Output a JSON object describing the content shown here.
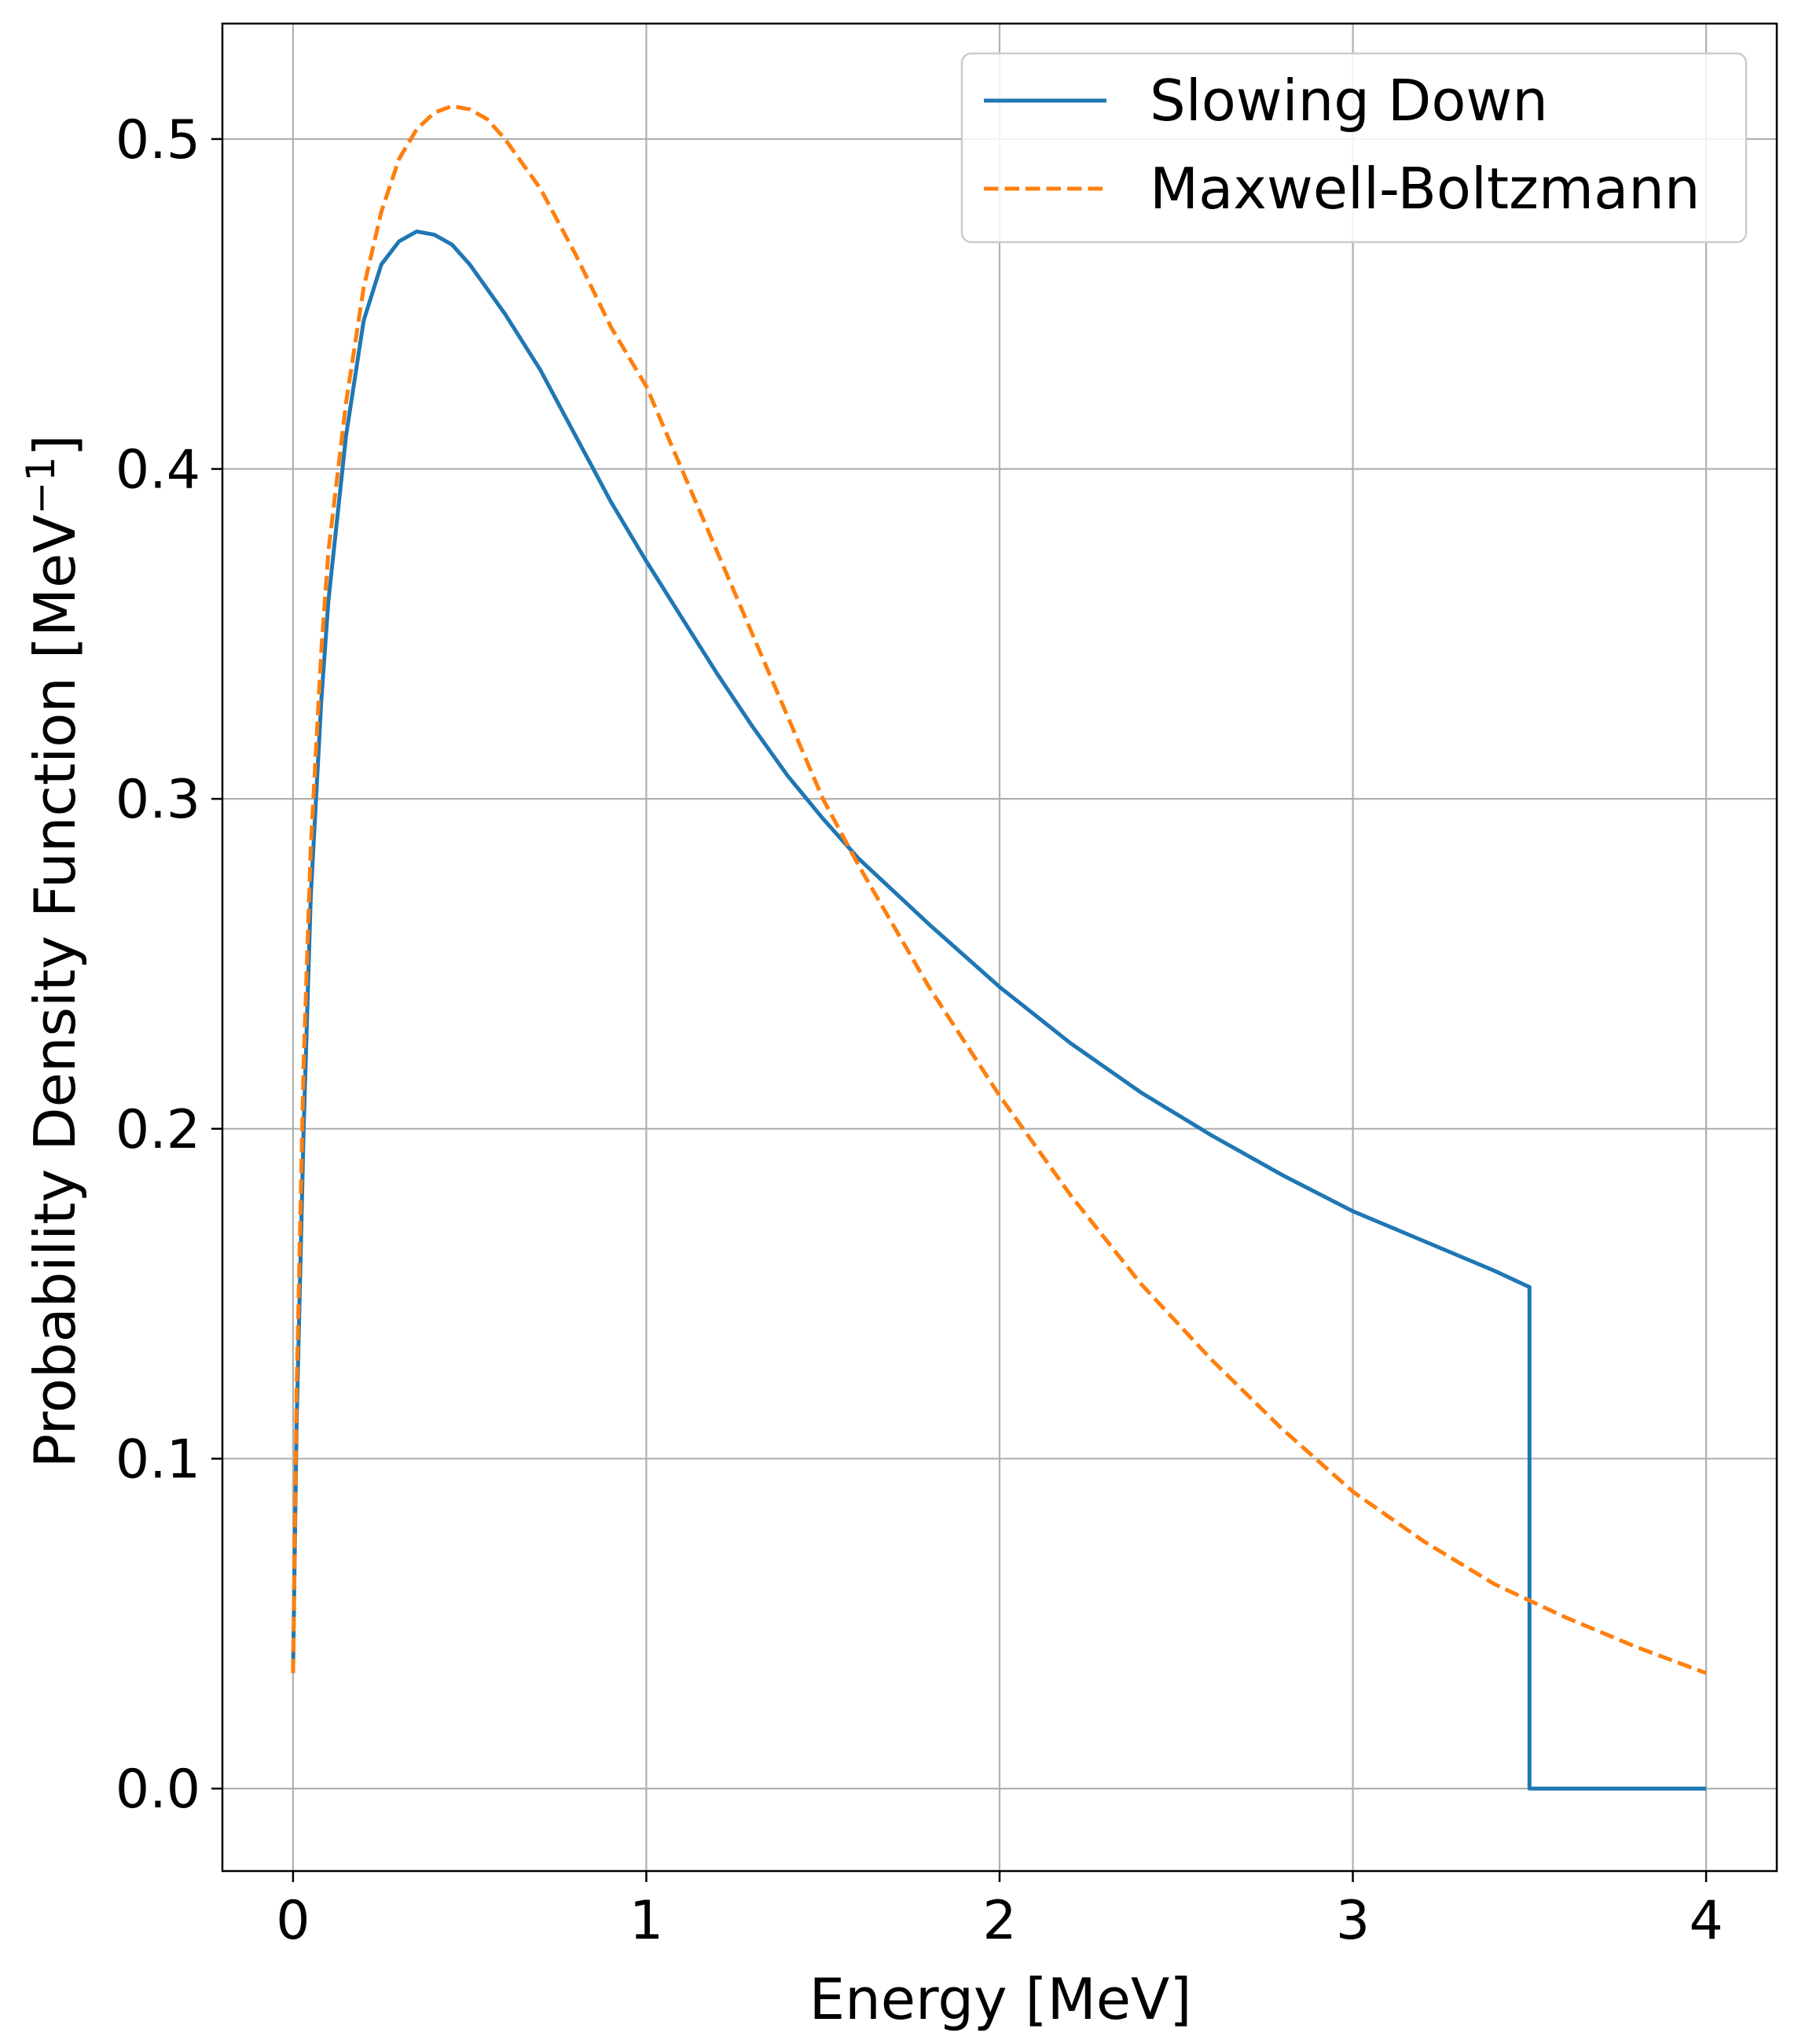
{
  "chart_data": {
    "type": "line",
    "title": "",
    "xlabel": "Energy [MeV]",
    "ylabel": "Probability Density Function [MeV",
    "ylabel_sup": "−1",
    "ylabel_close": "]",
    "xlim": [
      -0.2,
      4.2
    ],
    "ylim": [
      -0.025,
      0.535
    ],
    "xticks": [
      0,
      1,
      2,
      3,
      4
    ],
    "xtick_labels": [
      "0",
      "1",
      "2",
      "3",
      "4"
    ],
    "yticks": [
      0.0,
      0.1,
      0.2,
      0.3,
      0.4,
      0.5
    ],
    "ytick_labels": [
      "0.0",
      "0.1",
      "0.2",
      "0.3",
      "0.4",
      "0.5"
    ],
    "grid": true,
    "legend_position": "top-right",
    "series": [
      {
        "name": "Slowing Down",
        "color": "#1f77b4",
        "style": "solid",
        "x": [
          0.0,
          0.01,
          0.03,
          0.05,
          0.08,
          0.1,
          0.15,
          0.2,
          0.25,
          0.3,
          0.35,
          0.4,
          0.45,
          0.5,
          0.6,
          0.7,
          0.8,
          0.9,
          1.0,
          1.1,
          1.2,
          1.3,
          1.4,
          1.5,
          1.6,
          1.8,
          2.0,
          2.2,
          2.4,
          2.6,
          2.8,
          3.0,
          3.2,
          3.4,
          3.5,
          3.5,
          3.6,
          3.8,
          4.0
        ],
        "y": [
          0.035,
          0.11,
          0.2,
          0.27,
          0.33,
          0.36,
          0.41,
          0.445,
          0.462,
          0.469,
          0.472,
          0.471,
          0.468,
          0.462,
          0.447,
          0.43,
          0.41,
          0.39,
          0.372,
          0.355,
          0.338,
          0.322,
          0.307,
          0.294,
          0.282,
          0.262,
          0.243,
          0.226,
          0.211,
          0.198,
          0.186,
          0.175,
          0.166,
          0.157,
          0.152,
          0.0,
          0.0,
          0.0,
          0.0
        ]
      },
      {
        "name": "Maxwell-Boltzmann",
        "color": "#ff7f0e",
        "style": "dashed",
        "x": [
          0.0,
          0.01,
          0.03,
          0.05,
          0.08,
          0.1,
          0.15,
          0.2,
          0.25,
          0.3,
          0.35,
          0.4,
          0.45,
          0.5,
          0.55,
          0.6,
          0.7,
          0.8,
          0.9,
          1.0,
          1.1,
          1.2,
          1.3,
          1.4,
          1.5,
          1.6,
          1.8,
          2.0,
          2.2,
          2.4,
          2.6,
          2.8,
          3.0,
          3.2,
          3.4,
          3.6,
          3.8,
          4.0
        ],
        "y": [
          0.035,
          0.12,
          0.22,
          0.285,
          0.345,
          0.375,
          0.42,
          0.455,
          0.478,
          0.494,
          0.503,
          0.508,
          0.51,
          0.509,
          0.506,
          0.5,
          0.485,
          0.465,
          0.443,
          0.425,
          0.4,
          0.375,
          0.35,
          0.325,
          0.3,
          0.28,
          0.243,
          0.21,
          0.18,
          0.153,
          0.13,
          0.109,
          0.09,
          0.075,
          0.062,
          0.052,
          0.043,
          0.035
        ]
      }
    ]
  }
}
